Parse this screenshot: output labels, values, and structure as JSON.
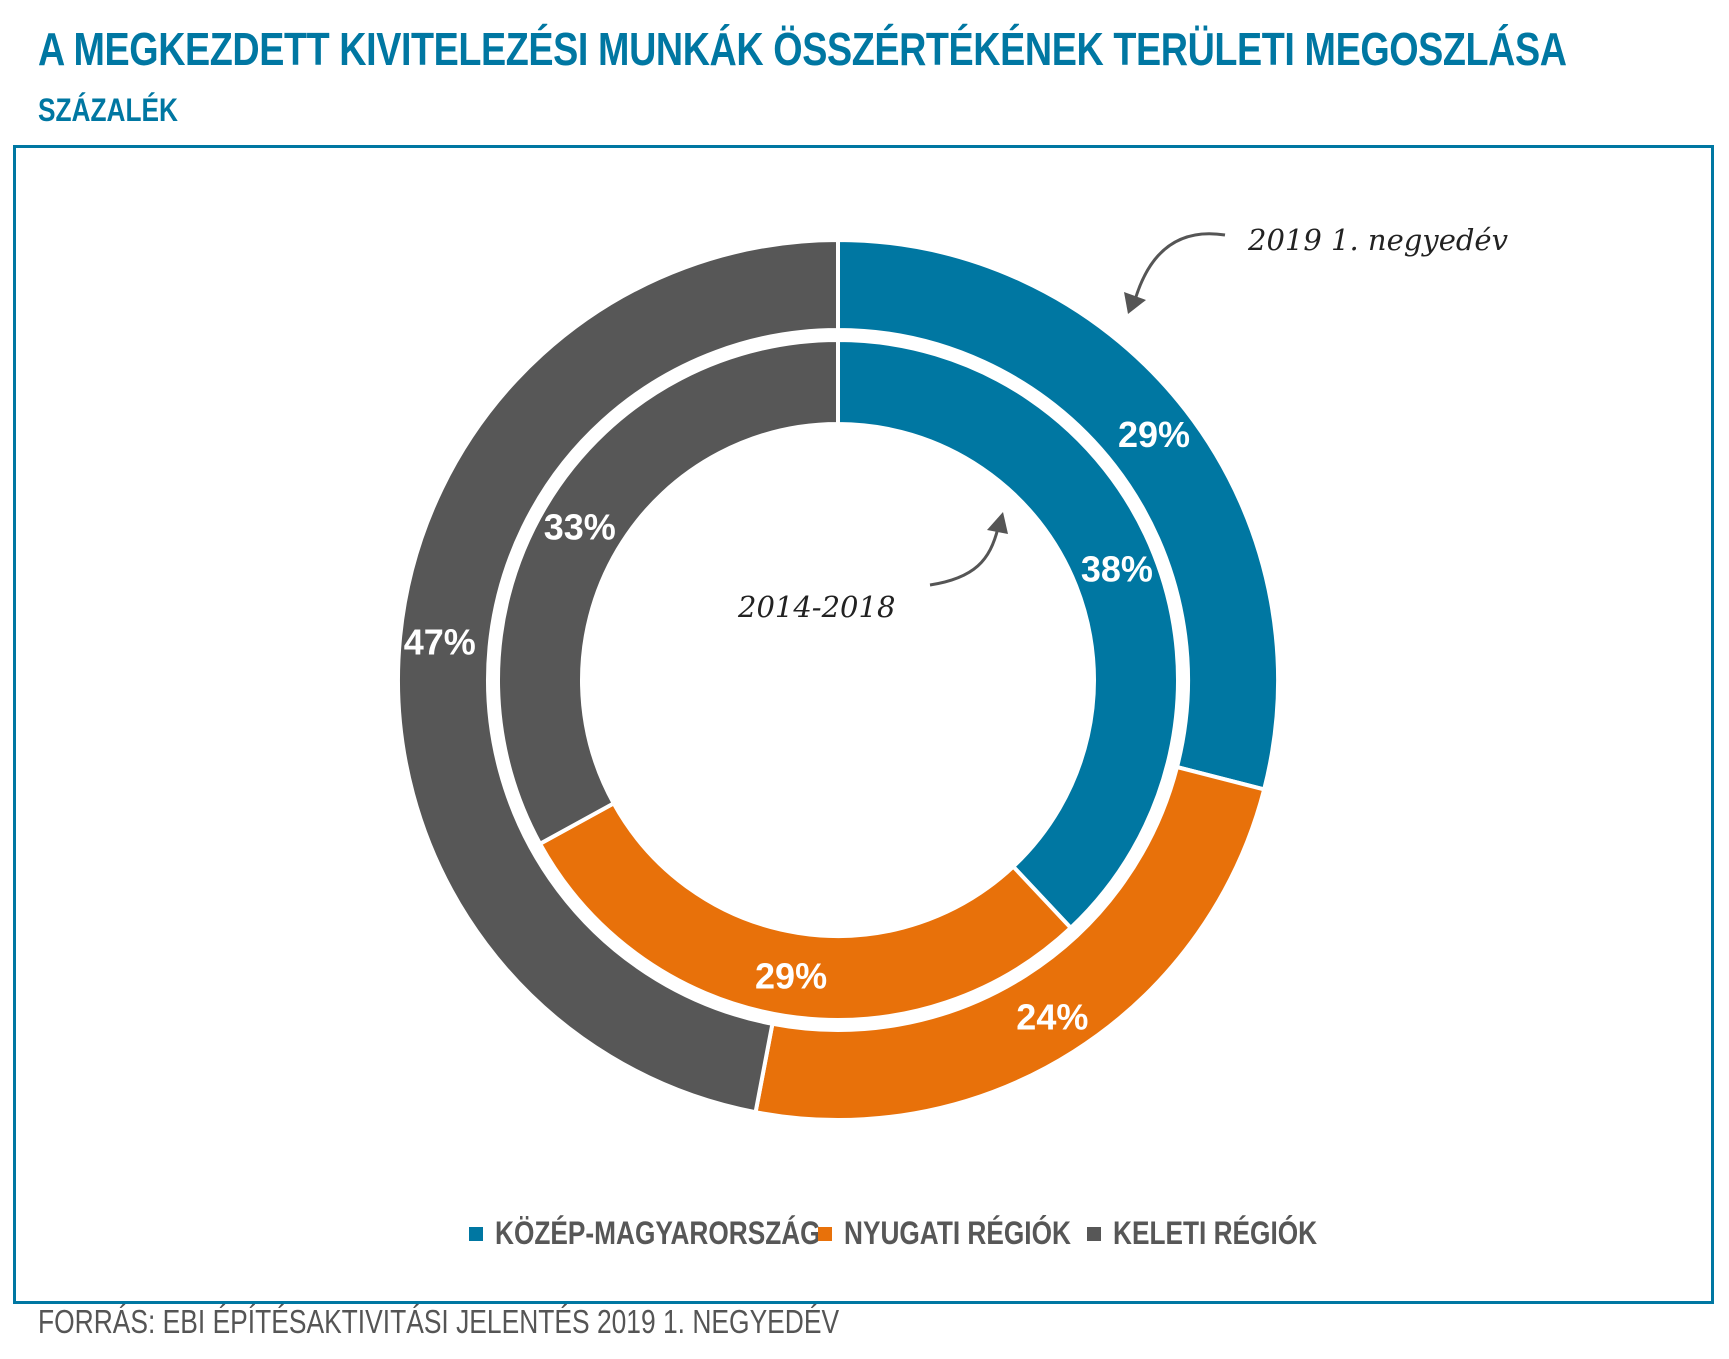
{
  "header": {
    "title": "A MEGKEZDETT KIVITELEZÉSI MUNKÁK ÖSSZÉRTÉKÉNEK TERÜLETI MEGOSZLÁSA",
    "subtitle": "SZÁZALÉK"
  },
  "footer": {
    "source": "FORRÁS: EBI ÉPÍTÉSAKTIVITÁSI JELENTÉS 2019 1. NEGYEDÉV"
  },
  "chart_data": {
    "type": "pie",
    "variant": "nested-donut",
    "title": "A MEGKEZDETT KIVITELEZÉSI MUNKÁK ÖSSZÉRTÉKÉNEK TERÜLETI MEGOSZLÁSA",
    "subtitle": "SZÁZALÉK",
    "categories": [
      "KÖZÉP-MAGYARORSZÁG",
      "NYUGATI RÉGIÓK",
      "KELETI RÉGIÓK"
    ],
    "colors": [
      "#0077a2",
      "#e8710a",
      "#575757"
    ],
    "series": [
      {
        "name": "2019 1. negyedév",
        "ring": "outer",
        "values": [
          29,
          24,
          47
        ],
        "labels": [
          "29%",
          "24%",
          "47%"
        ]
      },
      {
        "name": "2014-2018",
        "ring": "inner",
        "values": [
          38,
          29,
          33
        ],
        "labels": [
          "38%",
          "29%",
          "33%"
        ]
      }
    ],
    "annotations": [
      "2019 1. negyedév",
      "2014-2018"
    ],
    "legend": "bottom"
  }
}
